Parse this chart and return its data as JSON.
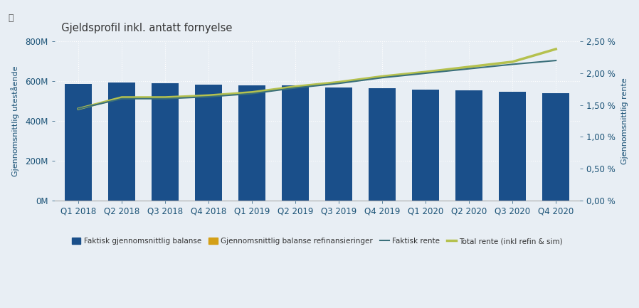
{
  "title": "Gjeldsprofil inkl. antatt fornyelse",
  "categories": [
    "Q1 2018",
    "Q2 2018",
    "Q3 2018",
    "Q4 2018",
    "Q1 2019",
    "Q2 2019",
    "Q3 2019",
    "Q4 2019",
    "Q1 2020",
    "Q2 2020",
    "Q3 2020",
    "Q4 2020"
  ],
  "bar_values": [
    585,
    595,
    588,
    583,
    580,
    578,
    570,
    563,
    558,
    553,
    548,
    540
  ],
  "bar_color": "#1a4f8a",
  "faktisk_rente": [
    1.44,
    1.6,
    1.6,
    1.63,
    1.68,
    1.77,
    1.84,
    1.93,
    2.0,
    2.07,
    2.14,
    2.2
  ],
  "total_rente": [
    1.44,
    1.62,
    1.62,
    1.65,
    1.7,
    1.79,
    1.86,
    1.95,
    2.02,
    2.1,
    2.18,
    2.38
  ],
  "faktisk_rente_color": "#3a6f7a",
  "total_rente_color": "#b5c14e",
  "ylabel_left": "Gjennomsnittlig utestående",
  "ylabel_right": "Gjennomsnittlig rente",
  "ylim_left": [
    0,
    800
  ],
  "ylim_right": [
    0.0,
    2.5
  ],
  "yticks_left": [
    0,
    200,
    400,
    600,
    800
  ],
  "yticks_left_labels": [
    "0M",
    "200M",
    "400M",
    "600M",
    "800M"
  ],
  "yticks_right": [
    0.0,
    0.5,
    1.0,
    1.5,
    2.0,
    2.5
  ],
  "yticks_right_labels": [
    "0,00 %",
    "0,50 %",
    "1,00 %",
    "1,50 %",
    "2,00 %",
    "2,50 %"
  ],
  "background_color": "#e8eef4",
  "plot_bg_color": "#e8eef4",
  "grid_color": "#ffffff",
  "legend_labels": [
    "Faktisk gjennomsnittlig balanse",
    "Gjennomsnittlig balanse refinansieringer",
    "Faktisk rente",
    "Total rente (inkl refin & sim)"
  ],
  "legend_colors": [
    "#1a4f8a",
    "#d4a017",
    "#3a6f7a",
    "#b5c14e"
  ],
  "title_fontsize": 10.5,
  "axis_label_fontsize": 8,
  "tick_fontsize": 8.5
}
